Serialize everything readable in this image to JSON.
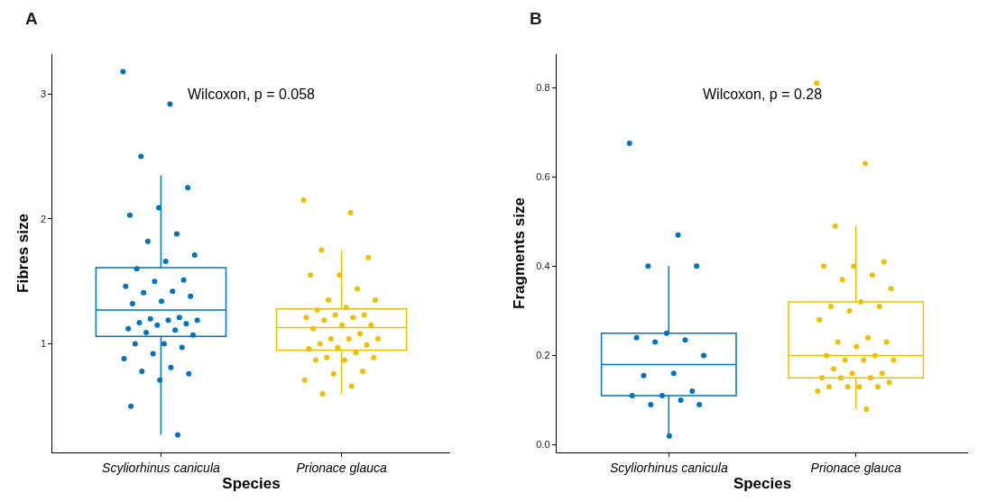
{
  "chart_data": [
    {
      "type": "box",
      "title": "A",
      "xlabel": "Species",
      "ylabel": "Fibres size",
      "categories": [
        "Scyliorhinus canicula",
        "Prionace glauca"
      ],
      "colors": [
        "#0073c2",
        "#efc000"
      ],
      "boxes": [
        {
          "low": 0.27,
          "q1": 1.06,
          "median": 1.27,
          "q3": 1.61,
          "high": 2.35
        },
        {
          "low": 0.6,
          "q1": 0.95,
          "median": 1.13,
          "q3": 1.28,
          "high": 1.75
        }
      ],
      "series": [
        {
          "type": "scatter",
          "color": "#0073c2",
          "x": [
            "Scyliorhinus canicula",
            "Scyliorhinus canicula",
            "Scyliorhinus canicula",
            "Scyliorhinus canicula",
            "Scyliorhinus canicula",
            "Scyliorhinus canicula",
            "Scyliorhinus canicula",
            "Scyliorhinus canicula",
            "Scyliorhinus canicula",
            "Scyliorhinus canicula",
            "Scyliorhinus canicula",
            "Scyliorhinus canicula",
            "Scyliorhinus canicula",
            "Scyliorhinus canicula",
            "Scyliorhinus canicula",
            "Scyliorhinus canicula",
            "Scyliorhinus canicula",
            "Scyliorhinus canicula",
            "Scyliorhinus canicula",
            "Scyliorhinus canicula",
            "Scyliorhinus canicula",
            "Scyliorhinus canicula",
            "Scyliorhinus canicula",
            "Scyliorhinus canicula",
            "Scyliorhinus canicula",
            "Scyliorhinus canicula",
            "Scyliorhinus canicula",
            "Scyliorhinus canicula",
            "Scyliorhinus canicula",
            "Scyliorhinus canicula",
            "Scyliorhinus canicula",
            "Scyliorhinus canicula",
            "Scyliorhinus canicula",
            "Scyliorhinus canicula",
            "Scyliorhinus canicula",
            "Scyliorhinus canicula",
            "Scyliorhinus canicula",
            "Scyliorhinus canicula",
            "Scyliorhinus canicula",
            "Scyliorhinus canicula",
            "Scyliorhinus canicula"
          ],
          "values": [
            3.18,
            2.92,
            2.5,
            2.25,
            2.09,
            2.03,
            1.88,
            1.82,
            1.71,
            1.66,
            1.6,
            1.51,
            1.5,
            1.46,
            1.42,
            1.41,
            1.38,
            1.34,
            1.32,
            1.21,
            1.2,
            1.19,
            1.19,
            1.17,
            1.16,
            1.15,
            1.12,
            1.11,
            1.09,
            1.07,
            1.0,
            1.0,
            0.97,
            0.92,
            0.88,
            0.81,
            0.78,
            0.76,
            0.71,
            0.5,
            0.27
          ]
        },
        {
          "type": "scatter",
          "color": "#efc000",
          "x": [
            "Prionace glauca",
            "Prionace glauca",
            "Prionace glauca",
            "Prionace glauca",
            "Prionace glauca",
            "Prionace glauca",
            "Prionace glauca",
            "Prionace glauca",
            "Prionace glauca",
            "Prionace glauca",
            "Prionace glauca",
            "Prionace glauca",
            "Prionace glauca",
            "Prionace glauca",
            "Prionace glauca",
            "Prionace glauca",
            "Prionace glauca",
            "Prionace glauca",
            "Prionace glauca",
            "Prionace glauca",
            "Prionace glauca",
            "Prionace glauca",
            "Prionace glauca",
            "Prionace glauca",
            "Prionace glauca",
            "Prionace glauca",
            "Prionace glauca",
            "Prionace glauca",
            "Prionace glauca",
            "Prionace glauca",
            "Prionace glauca",
            "Prionace glauca",
            "Prionace glauca",
            "Prionace glauca",
            "Prionace glauca",
            "Prionace glauca",
            "Prionace glauca"
          ],
          "values": [
            2.15,
            2.05,
            1.75,
            1.69,
            1.55,
            1.55,
            1.44,
            1.35,
            1.35,
            1.29,
            1.27,
            1.23,
            1.23,
            1.21,
            1.21,
            1.19,
            1.15,
            1.15,
            1.12,
            1.08,
            1.04,
            1.04,
            1.04,
            1.0,
            0.99,
            0.97,
            0.96,
            0.93,
            0.89,
            0.89,
            0.87,
            0.87,
            0.78,
            0.76,
            0.71,
            0.66,
            0.6
          ]
        }
      ],
      "annotations": [
        "Wilcoxon, p = 0.058"
      ],
      "ylim": [
        0.13,
        3.32
      ],
      "yticks": [
        1,
        2,
        3
      ],
      "marker": "circle"
    },
    {
      "type": "box",
      "title": "B",
      "xlabel": "Species",
      "ylabel": "Fragments size",
      "categories": [
        "Scyliorhinus canicula",
        "Prionace glauca"
      ],
      "colors": [
        "#0073c2",
        "#efc000"
      ],
      "boxes": [
        {
          "low": 0.02,
          "q1": 0.11,
          "median": 0.18,
          "q3": 0.25,
          "high": 0.4
        },
        {
          "low": 0.08,
          "q1": 0.15,
          "median": 0.2,
          "q3": 0.32,
          "high": 0.49
        }
      ],
      "series": [
        {
          "type": "scatter",
          "color": "#0073c2",
          "x": [
            "Scyliorhinus canicula",
            "Scyliorhinus canicula",
            "Scyliorhinus canicula",
            "Scyliorhinus canicula",
            "Scyliorhinus canicula",
            "Scyliorhinus canicula",
            "Scyliorhinus canicula",
            "Scyliorhinus canicula",
            "Scyliorhinus canicula",
            "Scyliorhinus canicula",
            "Scyliorhinus canicula",
            "Scyliorhinus canicula",
            "Scyliorhinus canicula",
            "Scyliorhinus canicula",
            "Scyliorhinus canicula",
            "Scyliorhinus canicula",
            "Scyliorhinus canicula",
            "Scyliorhinus canicula"
          ],
          "values": [
            0.675,
            0.47,
            0.4,
            0.4,
            0.25,
            0.24,
            0.235,
            0.23,
            0.2,
            0.16,
            0.155,
            0.12,
            0.11,
            0.11,
            0.1,
            0.09,
            0.09,
            0.02
          ]
        },
        {
          "type": "scatter",
          "color": "#efc000",
          "x": [
            "Prionace glauca",
            "Prionace glauca",
            "Prionace glauca",
            "Prionace glauca",
            "Prionace glauca",
            "Prionace glauca",
            "Prionace glauca",
            "Prionace glauca",
            "Prionace glauca",
            "Prionace glauca",
            "Prionace glauca",
            "Prionace glauca",
            "Prionace glauca",
            "Prionace glauca",
            "Prionace glauca",
            "Prionace glauca",
            "Prionace glauca",
            "Prionace glauca",
            "Prionace glauca",
            "Prionace glauca",
            "Prionace glauca",
            "Prionace glauca",
            "Prionace glauca",
            "Prionace glauca",
            "Prionace glauca",
            "Prionace glauca",
            "Prionace glauca",
            "Prionace glauca",
            "Prionace glauca",
            "Prionace glauca",
            "Prionace glauca",
            "Prionace glauca",
            "Prionace glauca",
            "Prionace glauca",
            "Prionace glauca",
            "Prionace glauca"
          ],
          "values": [
            0.81,
            0.63,
            0.49,
            0.41,
            0.4,
            0.4,
            0.38,
            0.37,
            0.35,
            0.32,
            0.31,
            0.31,
            0.3,
            0.28,
            0.24,
            0.23,
            0.23,
            0.22,
            0.2,
            0.2,
            0.19,
            0.19,
            0.19,
            0.17,
            0.16,
            0.16,
            0.15,
            0.15,
            0.15,
            0.14,
            0.13,
            0.13,
            0.13,
            0.13,
            0.12,
            0.08
          ]
        }
      ],
      "annotations": [
        "Wilcoxon, p = 0.28"
      ],
      "ylim": [
        -0.017,
        0.875
      ],
      "yticks": [
        {
          "value": 0,
          "label": "0.0"
        },
        0.2,
        0.4,
        0.6,
        0.8
      ],
      "marker": "circle"
    }
  ]
}
